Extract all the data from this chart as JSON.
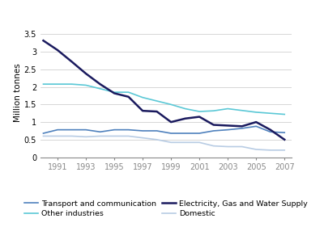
{
  "title": "",
  "ylabel": "Million tonnes",
  "years": [
    1990,
    1991,
    1992,
    1993,
    1994,
    1995,
    1996,
    1997,
    1998,
    1999,
    2000,
    2001,
    2002,
    2003,
    2004,
    2005,
    2006,
    2007
  ],
  "series": {
    "Transport and communication": {
      "values": [
        0.68,
        0.78,
        0.78,
        0.78,
        0.72,
        0.78,
        0.78,
        0.75,
        0.75,
        0.68,
        0.68,
        0.68,
        0.75,
        0.78,
        0.82,
        0.88,
        0.72,
        0.7
      ],
      "color": "#4f81bd",
      "linewidth": 1.2
    },
    "Other industries": {
      "values": [
        2.08,
        2.08,
        2.08,
        2.05,
        1.95,
        1.85,
        1.85,
        1.7,
        1.6,
        1.5,
        1.38,
        1.3,
        1.32,
        1.38,
        1.33,
        1.28,
        1.25,
        1.22
      ],
      "color": "#5bc8d6",
      "linewidth": 1.2
    },
    "Electricity, Gas and Water Supply": {
      "values": [
        3.32,
        3.05,
        2.72,
        2.38,
        2.08,
        1.82,
        1.72,
        1.32,
        1.3,
        1.0,
        1.1,
        1.15,
        0.92,
        0.9,
        0.88,
        1.0,
        0.78,
        0.5
      ],
      "color": "#1a1a5e",
      "linewidth": 1.8
    },
    "Domestic": {
      "values": [
        0.6,
        0.6,
        0.6,
        0.58,
        0.6,
        0.6,
        0.6,
        0.55,
        0.5,
        0.42,
        0.42,
        0.42,
        0.32,
        0.3,
        0.3,
        0.22,
        0.2,
        0.2
      ],
      "color": "#b8cce4",
      "linewidth": 1.2
    }
  },
  "xlim": [
    1989.8,
    2007.5
  ],
  "ylim": [
    0,
    3.7
  ],
  "yticks": [
    0,
    0.5,
    1.0,
    1.5,
    2.0,
    2.5,
    3.0,
    3.5
  ],
  "xticks": [
    1991,
    1993,
    1995,
    1997,
    1999,
    2001,
    2003,
    2005,
    2007
  ],
  "background_color": "#ffffff",
  "grid_color": "#d0d0d0",
  "legend_col1": [
    "Transport and communication",
    "Electricity, Gas and Water Supply"
  ],
  "legend_col2": [
    "Other industries",
    "Domestic"
  ]
}
